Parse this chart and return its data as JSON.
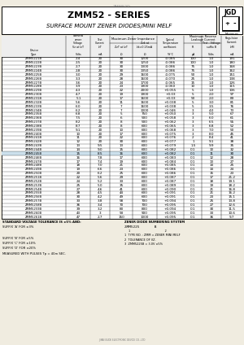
{
  "title": "ZMM52 - SERIES",
  "subtitle": "SURFACE MOUNT ZENER DIODES/MINI MELF",
  "bg_color": "#f0ece0",
  "rows": [
    [
      "ZMM5221B",
      "2.4",
      "20",
      "30",
      "1200",
      "-0.085",
      "100",
      "1.0",
      "191"
    ],
    [
      "ZMM5222B",
      "2.5",
      "20",
      "30",
      "1250",
      "-0.086",
      "100",
      "1.0",
      "180"
    ],
    [
      "ZMM5223B",
      "2.7",
      "20",
      "30",
      "1300",
      "-0.086",
      "75",
      "1.0",
      "168"
    ],
    [
      "ZMM5224B",
      "2.8",
      "20",
      "30",
      "1350",
      "-0.086",
      "75",
      "1.0",
      "162"
    ],
    [
      "ZMM5225B",
      "3.0",
      "20",
      "29",
      "1600",
      "-0.075",
      "50",
      "1.0",
      "151"
    ],
    [
      "ZMM5226B",
      "3.3",
      "20",
      "28",
      "1600",
      "-0.070",
      "25",
      "1.0",
      "138"
    ],
    [
      "ZMM5227B",
      "3.6",
      "20",
      "24",
      "1700",
      "-0.065",
      "15",
      "1.0",
      "126"
    ],
    [
      "ZMM5228B",
      "3.9",
      "20",
      "23",
      "1900",
      "-0.060",
      "10",
      "1.0",
      "115"
    ],
    [
      "ZMM5229B",
      "4.3",
      "20",
      "22",
      "2000",
      "+0.055",
      "5",
      "1.0",
      "106"
    ],
    [
      "ZMM5230B",
      "4.7",
      "20",
      "19",
      "1900",
      "+0.03",
      "5",
      "2.0",
      "97"
    ],
    [
      "ZMM5231B",
      "5.1",
      "20",
      "17",
      "1600",
      "+0.03",
      "50",
      "2.0",
      "89"
    ],
    [
      "ZMM5232B",
      "5.6",
      "20",
      "11",
      "1600",
      "+0.038",
      "5",
      "3.0",
      "81"
    ],
    [
      "ZMM5233B",
      "6.0",
      "20",
      "7",
      "1600",
      "+0.038",
      "5",
      "3.5",
      "76"
    ],
    [
      "ZMM5234B",
      "6.2",
      "20",
      "7",
      "1000",
      "+0.046",
      "3",
      "4.0",
      "73"
    ],
    [
      "ZMM5235B",
      "6.8",
      "20",
      "5",
      "750",
      "+0.050",
      "3",
      "5.0",
      "67"
    ],
    [
      "ZMM5236B",
      "7.5",
      "20",
      "6",
      "500",
      "+0.058",
      "3",
      "6.0",
      "61"
    ],
    [
      "ZMM5237B",
      "8.2",
      "20",
      "8",
      "500",
      "+0.062",
      "3",
      "6.5",
      "55"
    ],
    [
      "ZMM5238B",
      "8.7",
      "20",
      "8",
      "600",
      "+0.065",
      "3",
      "6.8",
      "52"
    ],
    [
      "ZMM5239B",
      "9.1",
      "20",
      "10",
      "600",
      "+0.068",
      "3",
      "7.0",
      "50"
    ],
    [
      "ZMM5240B",
      "10",
      "20",
      "17",
      "600",
      "+0.075",
      "3",
      "8.0",
      "45"
    ],
    [
      "ZMM5241B",
      "11",
      "20",
      "22",
      "600",
      "+0.076",
      "2",
      "8.4",
      "41"
    ],
    [
      "ZMM5242B",
      "12",
      "20",
      "30",
      "600",
      "+0.077",
      "1",
      "9.1",
      "38"
    ],
    [
      "ZMM5243B",
      "13",
      "9.5",
      "13",
      "600",
      "+0.079",
      "1.5",
      "9.9",
      "35"
    ],
    [
      "ZMM5244B",
      "14",
      "9.0",
      "15",
      "600",
      "+0.082",
      "0.1",
      "10",
      "32"
    ],
    [
      "ZMM5245B",
      "15",
      "8.5",
      "16",
      "600",
      "+0.082",
      "0.1",
      "11",
      "30"
    ],
    [
      "ZMM5246B",
      "16",
      "7.8",
      "17",
      "600",
      "+0.083",
      "0.1",
      "12",
      "28"
    ],
    [
      "ZMM5247B",
      "17",
      "7.4",
      "19",
      "600",
      "+0.084",
      "0.1",
      "13",
      "27"
    ],
    [
      "ZMM5248B",
      "18",
      "7.0",
      "21",
      "600",
      "+0.085",
      "0.1",
      "14",
      "25"
    ],
    [
      "ZMM5249B",
      "19",
      "6.6",
      "23",
      "600",
      "+0.086",
      "0.1",
      "14",
      "24"
    ],
    [
      "ZMM5250B",
      "20",
      "6.2",
      "25",
      "600",
      "+0.086",
      "0.1",
      "15",
      "23"
    ],
    [
      "ZMM5251B",
      "22",
      "5.6",
      "29",
      "600",
      "+0.087",
      "0.1",
      "17",
      "21.2"
    ],
    [
      "ZMM5252B",
      "24",
      "5.2",
      "33",
      "600",
      "+0.087",
      "0.1",
      "18",
      "19.1"
    ],
    [
      "ZMM5253B",
      "25",
      "5.0",
      "35",
      "600",
      "+0.089",
      "0.1",
      "19",
      "18.2"
    ],
    [
      "ZMM5254B",
      "27",
      "4.6",
      "41",
      "600",
      "+0.090",
      "0.1",
      "21",
      "16.8"
    ],
    [
      "ZMM5255B",
      "28",
      "4.5",
      "44",
      "600",
      "+0.091",
      "0.1",
      "21",
      "16.2"
    ],
    [
      "ZMM5256B",
      "30",
      "4.2",
      "49",
      "600",
      "+0.091",
      "0.1",
      "23",
      "15.1"
    ],
    [
      "ZMM5257B",
      "33",
      "3.8",
      "58",
      "700",
      "+0.094",
      "0.1",
      "25",
      "13.8"
    ],
    [
      "ZMM5258B",
      "36",
      "3.4",
      "70",
      "700",
      "+0.095",
      "0.1",
      "27",
      "12.6"
    ],
    [
      "ZMM5259B",
      "39",
      "3.2",
      "80",
      "800",
      "+0.094",
      "0.1",
      "30",
      "11.5"
    ],
    [
      "ZMM5260B",
      "43",
      "3",
      "93",
      "900",
      "+0.095",
      "0.1",
      "33",
      "10.6"
    ],
    [
      "ZMM5261B",
      "47",
      "2.7",
      "150",
      "1000",
      "+0.095",
      "0.1",
      "36",
      "9.7"
    ]
  ],
  "highlight_row": 24,
  "col_widths_rel": [
    2.0,
    0.75,
    0.6,
    0.7,
    0.75,
    0.85,
    0.55,
    0.6,
    0.65
  ],
  "footer_left_lines": [
    "STANDARD VOLTAGE TOLERANCE IS ±5% AND:",
    "SUFFIX 'A' FOR ±3%",
    "",
    "SUFFIX 'B' FOR ±5%",
    "SUFFIX 'C' FOR ±10%",
    "SUFFIX 'D' FOR ±20%",
    "MEASURED WITH PULSES Tp = 40m SEC."
  ],
  "company": "JINAN GUDE ELECTRONIC DEVICE CO., LTD"
}
